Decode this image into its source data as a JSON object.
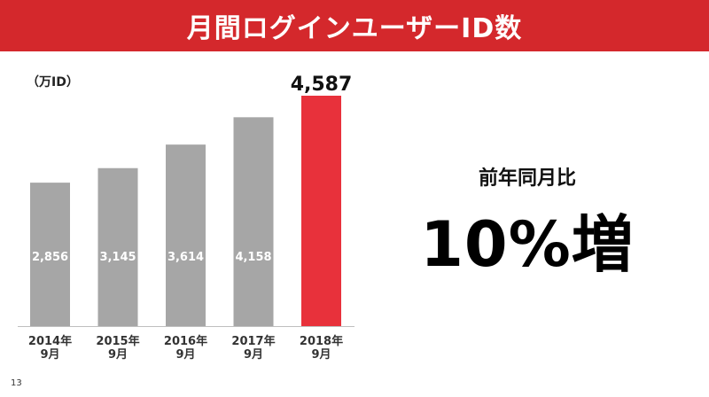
{
  "header": {
    "title": "月間ログインユーザーID数"
  },
  "chart_data": {
    "type": "bar",
    "unit_label": "（万ID）",
    "categories": [
      "2014年\n9月",
      "2015年\n9月",
      "2016年\n9月",
      "2017年\n9月",
      "2018年\n9月"
    ],
    "values": [
      2856,
      3145,
      3614,
      4158,
      4587
    ],
    "value_labels": [
      "2,856",
      "3,145",
      "3,614",
      "4,158",
      "4,587"
    ],
    "ylim": [
      0,
      4587
    ],
    "grid": false,
    "colors": {
      "normal": "#a6a6a6",
      "highlight": "#e8313b",
      "inside_label": "#ffffff",
      "outside_label": "#111111"
    },
    "highlight_index": 4
  },
  "summary": {
    "label": "前年同月比",
    "value": "10%増"
  },
  "footer": {
    "page_number": "13"
  }
}
